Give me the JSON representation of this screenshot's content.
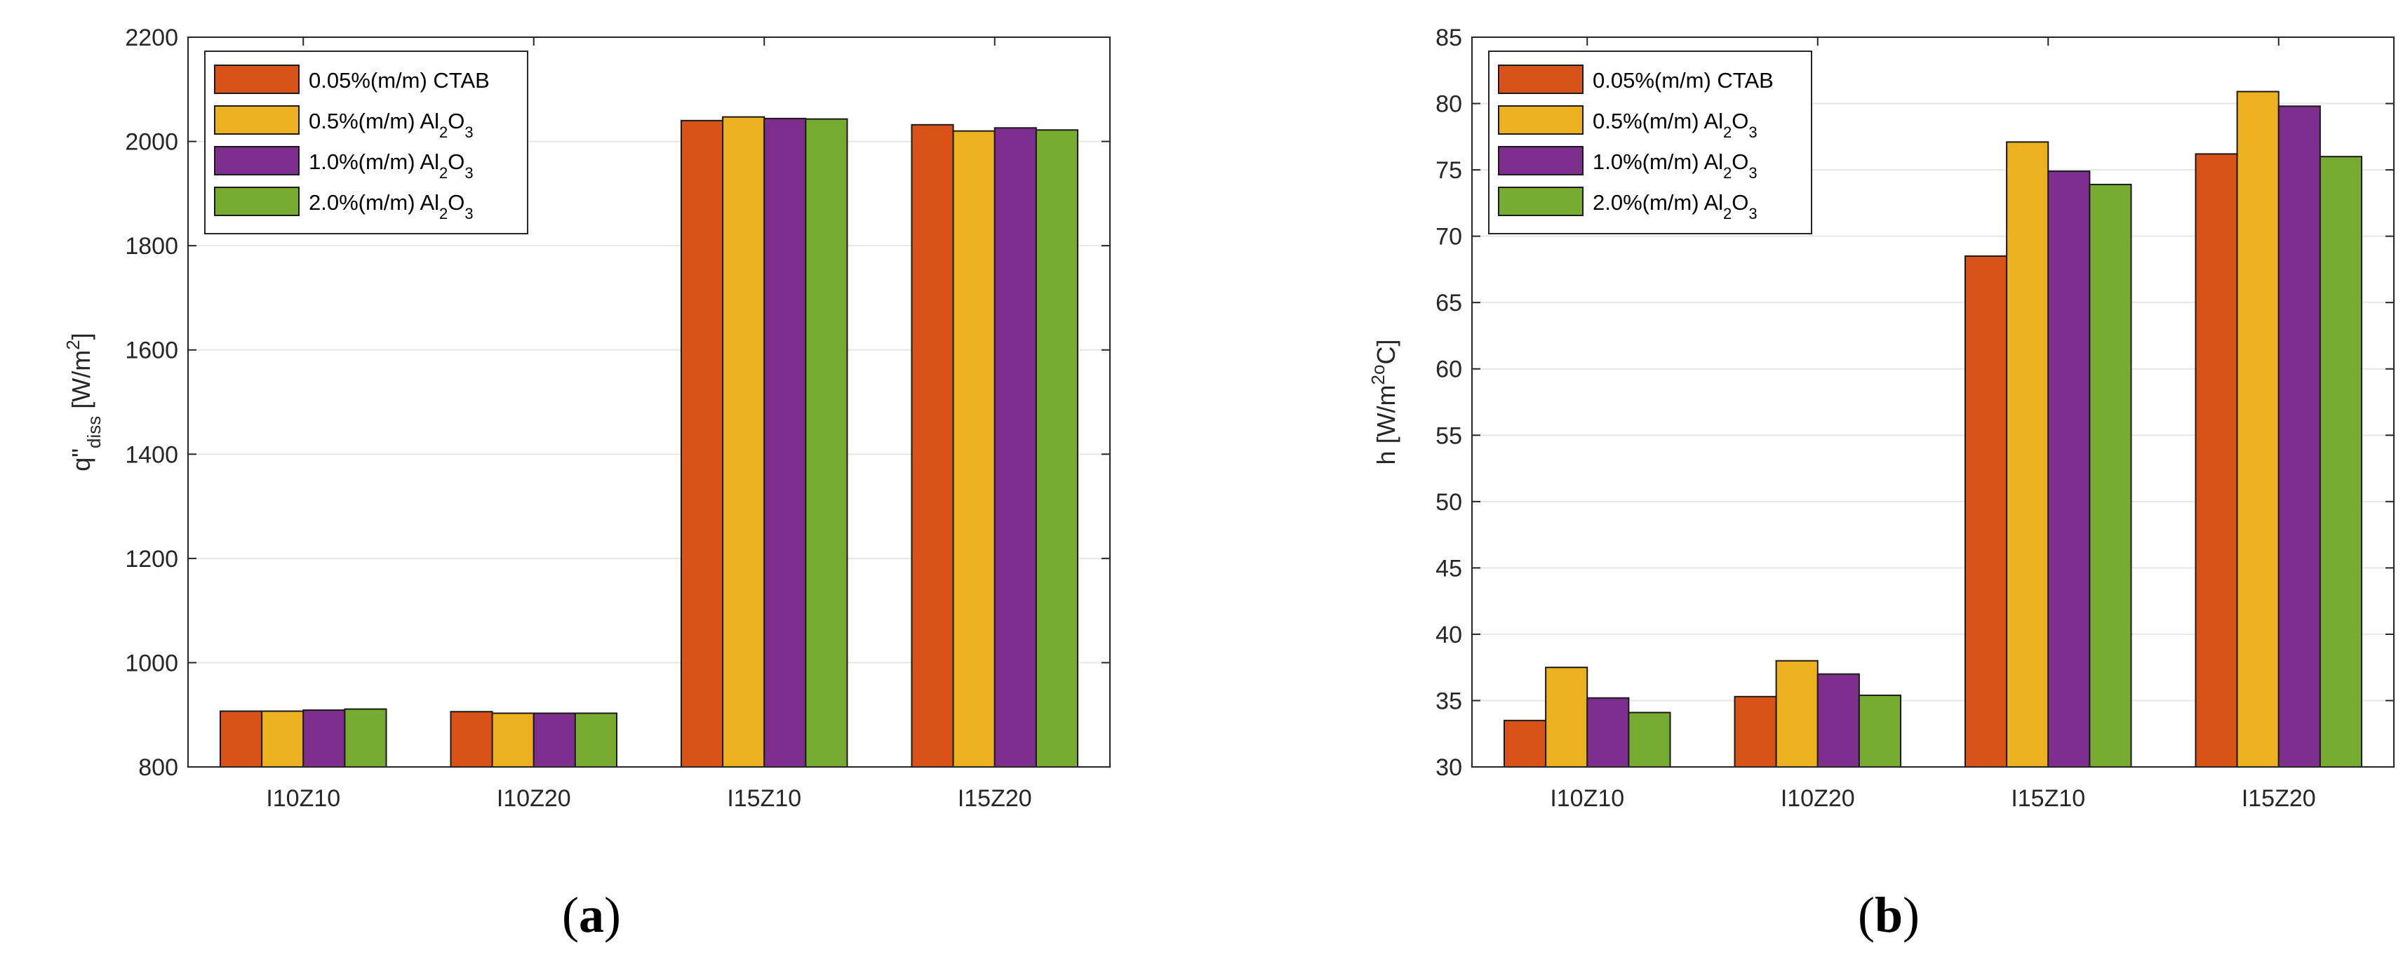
{
  "chart_data": [
    {
      "type": "bar",
      "panel_label": "a",
      "ylabel": {
        "main": "q\"",
        "sub": "diss",
        "unit_pre": " [W/m",
        "sup": "2",
        "unit_post": "]"
      },
      "ylim": [
        800,
        2200
      ],
      "yticks": [
        800,
        1000,
        1200,
        1400,
        1600,
        1800,
        2000,
        2200
      ],
      "categories": [
        "I10Z10",
        "I10Z20",
        "I15Z10",
        "I15Z20"
      ],
      "grid": true,
      "legend_position": "top-left",
      "series": [
        {
          "name": "0.05%(m/m) CTAB",
          "values": [
            907,
            906,
            2040,
            2032
          ]
        },
        {
          "name": "0.5%(m/m) Al2O3",
          "values": [
            907,
            903,
            2047,
            2020
          ]
        },
        {
          "name": "1.0%(m/m) Al2O3",
          "values": [
            909,
            903,
            2044,
            2026
          ]
        },
        {
          "name": "2.0%(m/m) Al2O3",
          "values": [
            911,
            903,
            2043,
            2022
          ]
        }
      ]
    },
    {
      "type": "bar",
      "panel_label": "b",
      "ylabel": {
        "main": "h [W/m",
        "sup": "2o",
        "unit_post": "C]"
      },
      "ylim": [
        30,
        85
      ],
      "yticks": [
        30,
        35,
        40,
        45,
        50,
        55,
        60,
        65,
        70,
        75,
        80,
        85
      ],
      "categories": [
        "I10Z10",
        "I10Z20",
        "I15Z10",
        "I15Z20"
      ],
      "grid": true,
      "legend_position": "top-left",
      "series": [
        {
          "name": "0.05%(m/m) CTAB",
          "values": [
            33.5,
            35.3,
            68.5,
            76.2
          ]
        },
        {
          "name": "0.5%(m/m) Al2O3",
          "values": [
            37.5,
            38.0,
            77.1,
            80.9
          ]
        },
        {
          "name": "1.0%(m/m) Al2O3",
          "values": [
            35.2,
            37.0,
            74.9,
            79.8
          ]
        },
        {
          "name": "2.0%(m/m) Al2O3",
          "values": [
            34.1,
            35.4,
            73.9,
            76.0
          ]
        }
      ]
    }
  ],
  "legend": [
    {
      "prefix": "0.05%(m/m) CTAB",
      "chem": null
    },
    {
      "prefix": "0.5%(m/m) ",
      "chem": {
        "a": "Al",
        "s1": "2",
        "b": "O",
        "s2": "3"
      }
    },
    {
      "prefix": "1.0%(m/m) ",
      "chem": {
        "a": "Al",
        "s1": "2",
        "b": "O",
        "s2": "3"
      }
    },
    {
      "prefix": "2.0%(m/m) ",
      "chem": {
        "a": "Al",
        "s1": "2",
        "b": "O",
        "s2": "3"
      }
    }
  ],
  "colors": [
    "#D95319",
    "#EDB120",
    "#7E2F8E",
    "#77AC30"
  ]
}
